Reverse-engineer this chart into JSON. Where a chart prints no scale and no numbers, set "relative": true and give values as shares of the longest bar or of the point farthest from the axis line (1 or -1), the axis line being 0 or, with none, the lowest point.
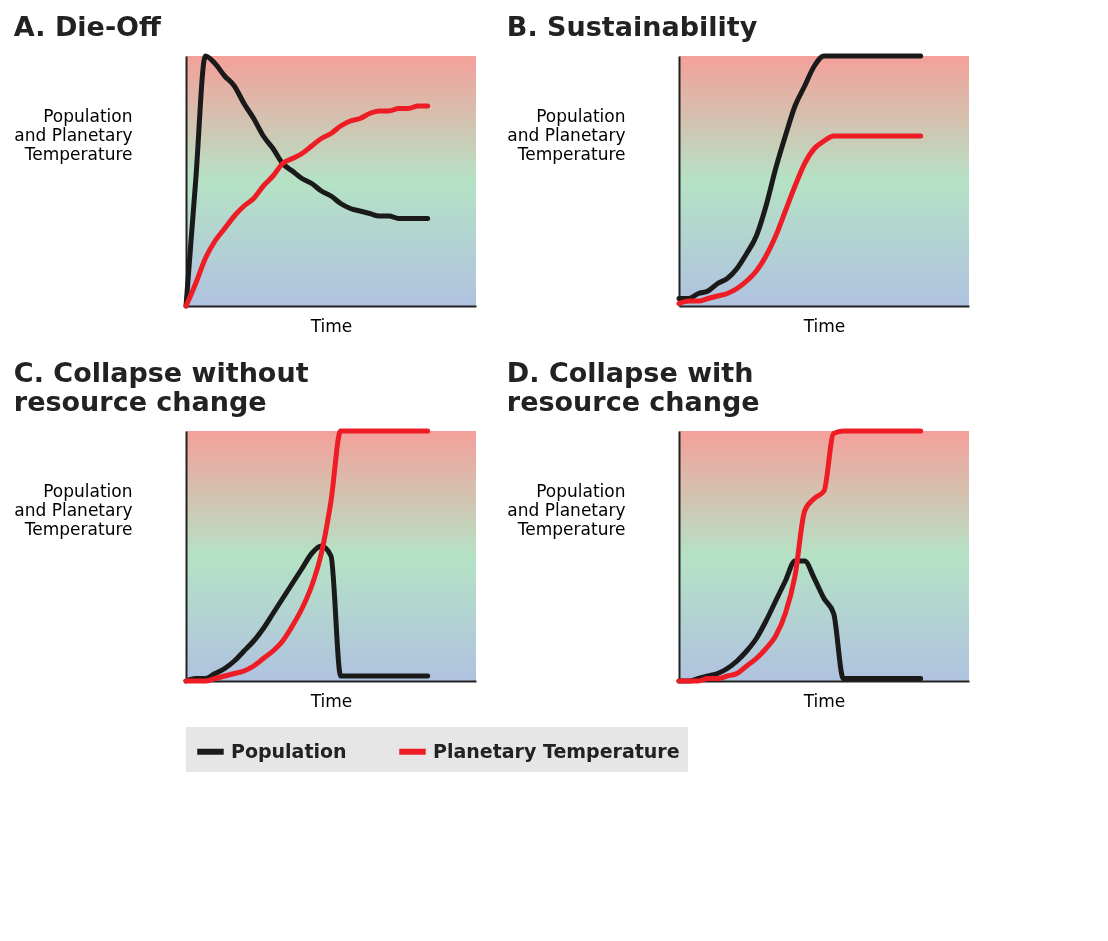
{
  "chart_data": [
    {
      "type": "line",
      "title": "A. Die-Off",
      "xlabel": "Time",
      "ylabel": "Population and Planetary Temperature",
      "relative": true,
      "categories": [
        null,
        null,
        null,
        null,
        null,
        null,
        null,
        null,
        null,
        null,
        null,
        null,
        null,
        null,
        null,
        null,
        null,
        null,
        null,
        null,
        null,
        null,
        null,
        null,
        null,
        null,
        null,
        null,
        null,
        null,
        null
      ],
      "series": [
        {
          "color": "#1a1a1a",
          "values": [
            0,
            0.5,
            1.0,
            0.97,
            0.92,
            0.88,
            0.81,
            0.75,
            0.68,
            0.63,
            0.57,
            0.54,
            0.51,
            0.49,
            0.46,
            0.44,
            0.41,
            0.39,
            0.38,
            0.37,
            0.36,
            0.36,
            0.35,
            0.35,
            0.35,
            0.35,
            null,
            null,
            null,
            null,
            null
          ]
        },
        {
          "color": "#ee1c25",
          "values": [
            0,
            0.09,
            0.19,
            0.26,
            0.31,
            0.36,
            0.4,
            0.43,
            0.48,
            0.52,
            0.57,
            0.59,
            0.61,
            0.64,
            0.67,
            0.69,
            0.72,
            0.74,
            0.75,
            0.77,
            0.78,
            0.78,
            0.79,
            0.79,
            0.8,
            0.8,
            null,
            null,
            null,
            null,
            null
          ]
        }
      ]
    },
    {
      "type": "line",
      "title": "B. Sustainability",
      "xlabel": "Time",
      "ylabel": "Population and Planetary Temperature",
      "relative": true,
      "categories": [
        null,
        null,
        null,
        null,
        null,
        null,
        null,
        null,
        null,
        null,
        null,
        null,
        null,
        null,
        null,
        null,
        null,
        null,
        null,
        null,
        null,
        null,
        null,
        null,
        null,
        null,
        null,
        null,
        null,
        null,
        null
      ],
      "series": [
        {
          "color": "#1a1a1a",
          "values": [
            0.03,
            0.03,
            0.05,
            0.06,
            0.09,
            0.11,
            0.15,
            0.21,
            0.28,
            0.4,
            0.55,
            0.68,
            0.8,
            0.88,
            0.96,
            1,
            1,
            1,
            1,
            1,
            1,
            1,
            1,
            1,
            1,
            1,
            null,
            null,
            null,
            null,
            null
          ]
        },
        {
          "color": "#ee1c25",
          "values": [
            0.01,
            0.02,
            0.02,
            0.03,
            0.04,
            0.05,
            0.07,
            0.1,
            0.14,
            0.2,
            0.28,
            0.38,
            0.48,
            0.57,
            0.63,
            0.66,
            0.68,
            0.68,
            0.68,
            0.68,
            0.68,
            0.68,
            0.68,
            0.68,
            0.68,
            0.68,
            null,
            null,
            null,
            null,
            null
          ]
        }
      ]
    },
    {
      "type": "line",
      "title": "C. Collapse without resource change",
      "xlabel": "Time",
      "ylabel": "Population and Planetary Temperature",
      "relative": true,
      "categories": [
        null,
        null,
        null,
        null,
        null,
        null,
        null,
        null,
        null,
        null,
        null,
        null,
        null,
        null,
        null,
        null,
        null,
        null,
        null,
        null,
        null,
        null,
        null,
        null,
        null,
        null,
        null,
        null,
        null,
        null,
        null
      ],
      "series": [
        {
          "color": "#1a1a1a",
          "values": [
            0,
            0.01,
            0.01,
            0.03,
            0.05,
            0.08,
            0.12,
            0.16,
            0.21,
            0.27,
            0.33,
            0.39,
            0.45,
            0.51,
            0.54,
            0.5,
            0.02,
            0.02,
            0.02,
            0.02,
            0.02,
            0.02,
            0.02,
            0.02,
            0.02,
            0.02,
            null,
            null,
            null,
            null,
            null
          ]
        },
        {
          "color": "#ee1c25",
          "values": [
            0,
            0,
            0,
            0.01,
            0.02,
            0.03,
            0.04,
            0.06,
            0.09,
            0.12,
            0.16,
            0.22,
            0.29,
            0.38,
            0.51,
            0.72,
            1,
            1,
            1,
            1,
            1,
            1,
            1,
            1,
            1,
            1,
            null,
            null,
            null,
            null,
            null
          ]
        }
      ]
    },
    {
      "type": "line",
      "title": "D. Collapse with resource change",
      "xlabel": "Time",
      "ylabel": "Population and Planetary Temperature",
      "relative": true,
      "legend": "bottom",
      "categories": [
        null,
        null,
        null,
        null,
        null,
        null,
        null,
        null,
        null,
        null,
        null,
        null,
        null,
        null,
        null,
        null,
        null,
        null,
        null,
        null,
        null,
        null,
        null,
        null,
        null,
        null,
        null,
        null,
        null,
        null,
        null
      ],
      "series": [
        {
          "name": "Population",
          "color": "#1a1a1a",
          "values": [
            0,
            0,
            0.01,
            0.02,
            0.03,
            0.05,
            0.08,
            0.12,
            0.17,
            0.24,
            0.32,
            0.4,
            0.48,
            0.48,
            0.41,
            0.33,
            0.27,
            0.01,
            0.01,
            0.01,
            0.01,
            0.01,
            0.01,
            0.01,
            0.01,
            0.01,
            null,
            null,
            null,
            null,
            null
          ]
        },
        {
          "name": "Planetary Temperature",
          "color": "#ee1c25",
          "values": [
            0,
            0,
            0,
            0.01,
            0.01,
            0.02,
            0.03,
            0.06,
            0.09,
            0.13,
            0.18,
            0.27,
            0.42,
            0.68,
            0.73,
            0.76,
            0.99,
            1,
            1,
            1,
            1,
            1,
            1,
            1,
            1,
            1,
            null,
            null,
            null,
            null,
            null
          ]
        }
      ]
    }
  ]
}
